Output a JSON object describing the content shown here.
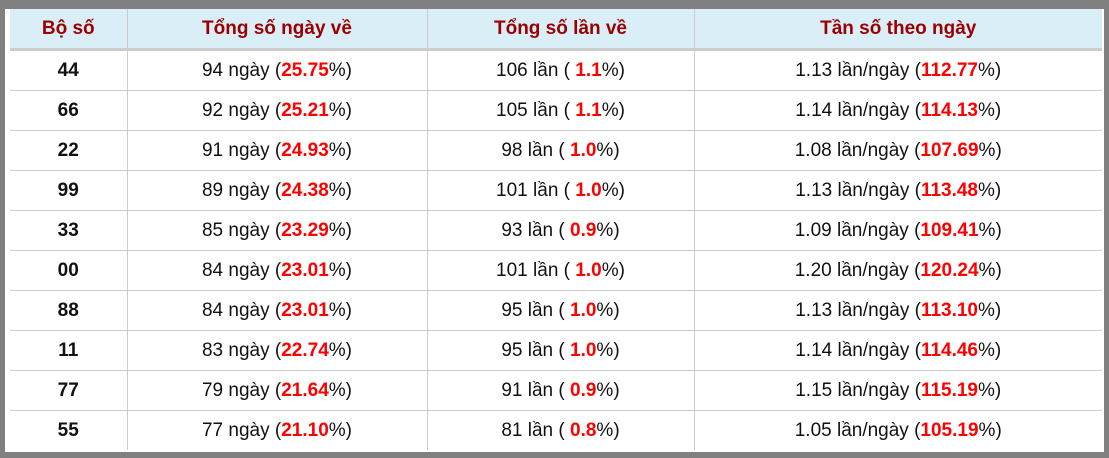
{
  "headers": [
    "Bộ số",
    "Tổng số ngày về",
    "Tổng số lần về",
    "Tần số theo ngày"
  ],
  "accent_color": "#ff0000",
  "header_color": "#9b0000",
  "rows": [
    {
      "so": "44",
      "ngay": "94 ngày",
      "ngay_pct": "25.75",
      "lan": "106 lần",
      "lan_pct": "1.1",
      "tanso": "1.13 lần/ngày",
      "tanso_pct": "112.77"
    },
    {
      "so": "66",
      "ngay": "92 ngày",
      "ngay_pct": "25.21",
      "lan": "105 lần",
      "lan_pct": "1.1",
      "tanso": "1.14 lần/ngày",
      "tanso_pct": "114.13"
    },
    {
      "so": "22",
      "ngay": "91 ngày",
      "ngay_pct": "24.93",
      "lan": "98 lần",
      "lan_pct": "1.0",
      "tanso": "1.08 lần/ngày",
      "tanso_pct": "107.69"
    },
    {
      "so": "99",
      "ngay": "89 ngày",
      "ngay_pct": "24.38",
      "lan": "101 lần",
      "lan_pct": "1.0",
      "tanso": "1.13 lần/ngày",
      "tanso_pct": "113.48"
    },
    {
      "so": "33",
      "ngay": "85 ngày",
      "ngay_pct": "23.29",
      "lan": "93 lần",
      "lan_pct": "0.9",
      "tanso": "1.09 lần/ngày",
      "tanso_pct": "109.41"
    },
    {
      "so": "00",
      "ngay": "84 ngày",
      "ngay_pct": "23.01",
      "lan": "101 lần",
      "lan_pct": "1.0",
      "tanso": "1.20 lần/ngày",
      "tanso_pct": "120.24"
    },
    {
      "so": "88",
      "ngay": "84 ngày",
      "ngay_pct": "23.01",
      "lan": "95 lần",
      "lan_pct": "1.0",
      "tanso": "1.13 lần/ngày",
      "tanso_pct": "113.10"
    },
    {
      "so": "11",
      "ngay": "83 ngày",
      "ngay_pct": "22.74",
      "lan": "95 lần",
      "lan_pct": "1.0",
      "tanso": "1.14 lần/ngày",
      "tanso_pct": "114.46"
    },
    {
      "so": "77",
      "ngay": "79 ngày",
      "ngay_pct": "21.64",
      "lan": "91 lần",
      "lan_pct": "0.9",
      "tanso": "1.15 lần/ngày",
      "tanso_pct": "115.19"
    },
    {
      "so": "55",
      "ngay": "77 ngày",
      "ngay_pct": "21.10",
      "lan": "81 lần",
      "lan_pct": "0.8",
      "tanso": "1.05 lần/ngày",
      "tanso_pct": "105.19"
    }
  ]
}
